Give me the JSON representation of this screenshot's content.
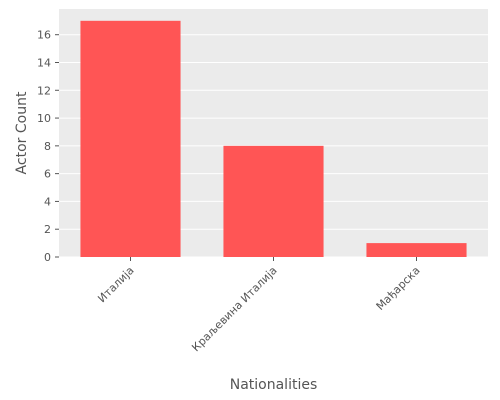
{
  "chart_data": {
    "type": "bar",
    "categories": [
      "Италија",
      "Краљевина Италија",
      "Мађарска"
    ],
    "values": [
      17,
      8,
      1
    ],
    "title": "",
    "xlabel": "Nationalities",
    "ylabel": "Actor Count",
    "ylim": [
      0,
      17.85
    ],
    "yticks": [
      0,
      2,
      4,
      6,
      8,
      10,
      12,
      14,
      16
    ],
    "grid": true,
    "legend": "none",
    "colors": {
      "bar": "#FF5555",
      "plot_background": "#EBEBEB",
      "grid": "#FFFFFF",
      "text": "#555555"
    }
  }
}
